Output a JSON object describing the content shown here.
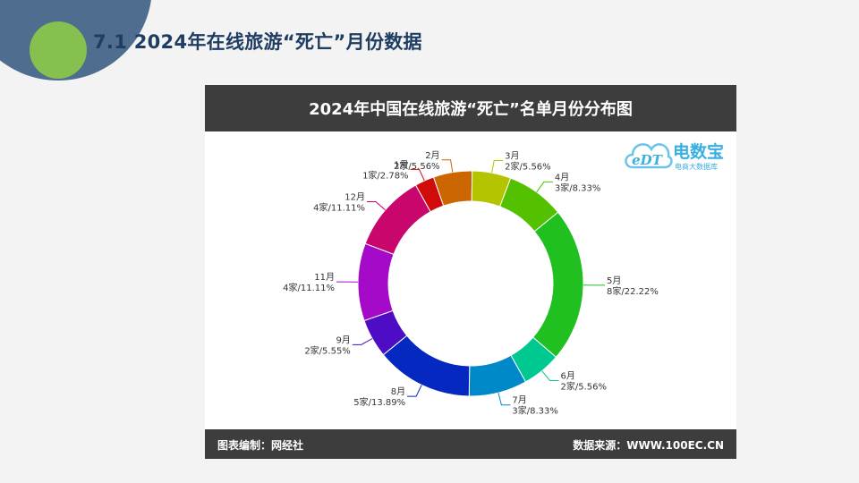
{
  "slide": {
    "title": "7.1  2024年在线旅游“死亡”月份数据"
  },
  "card": {
    "footer_left": "图表编制：网经社",
    "footer_right": "数据来源：WWW.100EC.CN"
  },
  "logo": {
    "mark": "eDT",
    "name": "电数宝",
    "sub": "电商大数据库"
  },
  "chart_data": {
    "type": "pie",
    "variant": "donut",
    "title": "2024年中国在线旅游“死亡”名单月份分布图",
    "unit": "家",
    "slices": [
      {
        "label": "1月",
        "value": 1,
        "percent": "2.78%",
        "text": "1家/2.78%",
        "color": "#d10a0a"
      },
      {
        "label": "2月",
        "value": 2,
        "percent": "5.56%",
        "text": "2家/5.56%",
        "color": "#cc6600"
      },
      {
        "label": "3月",
        "value": 2,
        "percent": "5.56%",
        "text": "2家/5.56%",
        "color": "#b5c400"
      },
      {
        "label": "4月",
        "value": 3,
        "percent": "8.33%",
        "text": "3家/8.33%",
        "color": "#53c000"
      },
      {
        "label": "5月",
        "value": 8,
        "percent": "22.22%",
        "text": "8家/22.22%",
        "color": "#1fc020"
      },
      {
        "label": "6月",
        "value": 2,
        "percent": "5.56%",
        "text": "2家/5.56%",
        "color": "#00c891"
      },
      {
        "label": "7月",
        "value": 3,
        "percent": "8.33%",
        "text": "3家/8.33%",
        "color": "#0089c9"
      },
      {
        "label": "8月",
        "value": 5,
        "percent": "13.89%",
        "text": "5家/13.89%",
        "color": "#0529c0"
      },
      {
        "label": "9月",
        "value": 2,
        "percent": "5.55%",
        "text": "2家/5.55%",
        "color": "#4e0dc4"
      },
      {
        "label": "11月",
        "value": 4,
        "percent": "11.11%",
        "text": "4家/11.11%",
        "color": "#a60ac9"
      },
      {
        "label": "12月",
        "value": 4,
        "percent": "11.11%",
        "text": "4家/11.11%",
        "color": "#c9066c"
      }
    ]
  }
}
